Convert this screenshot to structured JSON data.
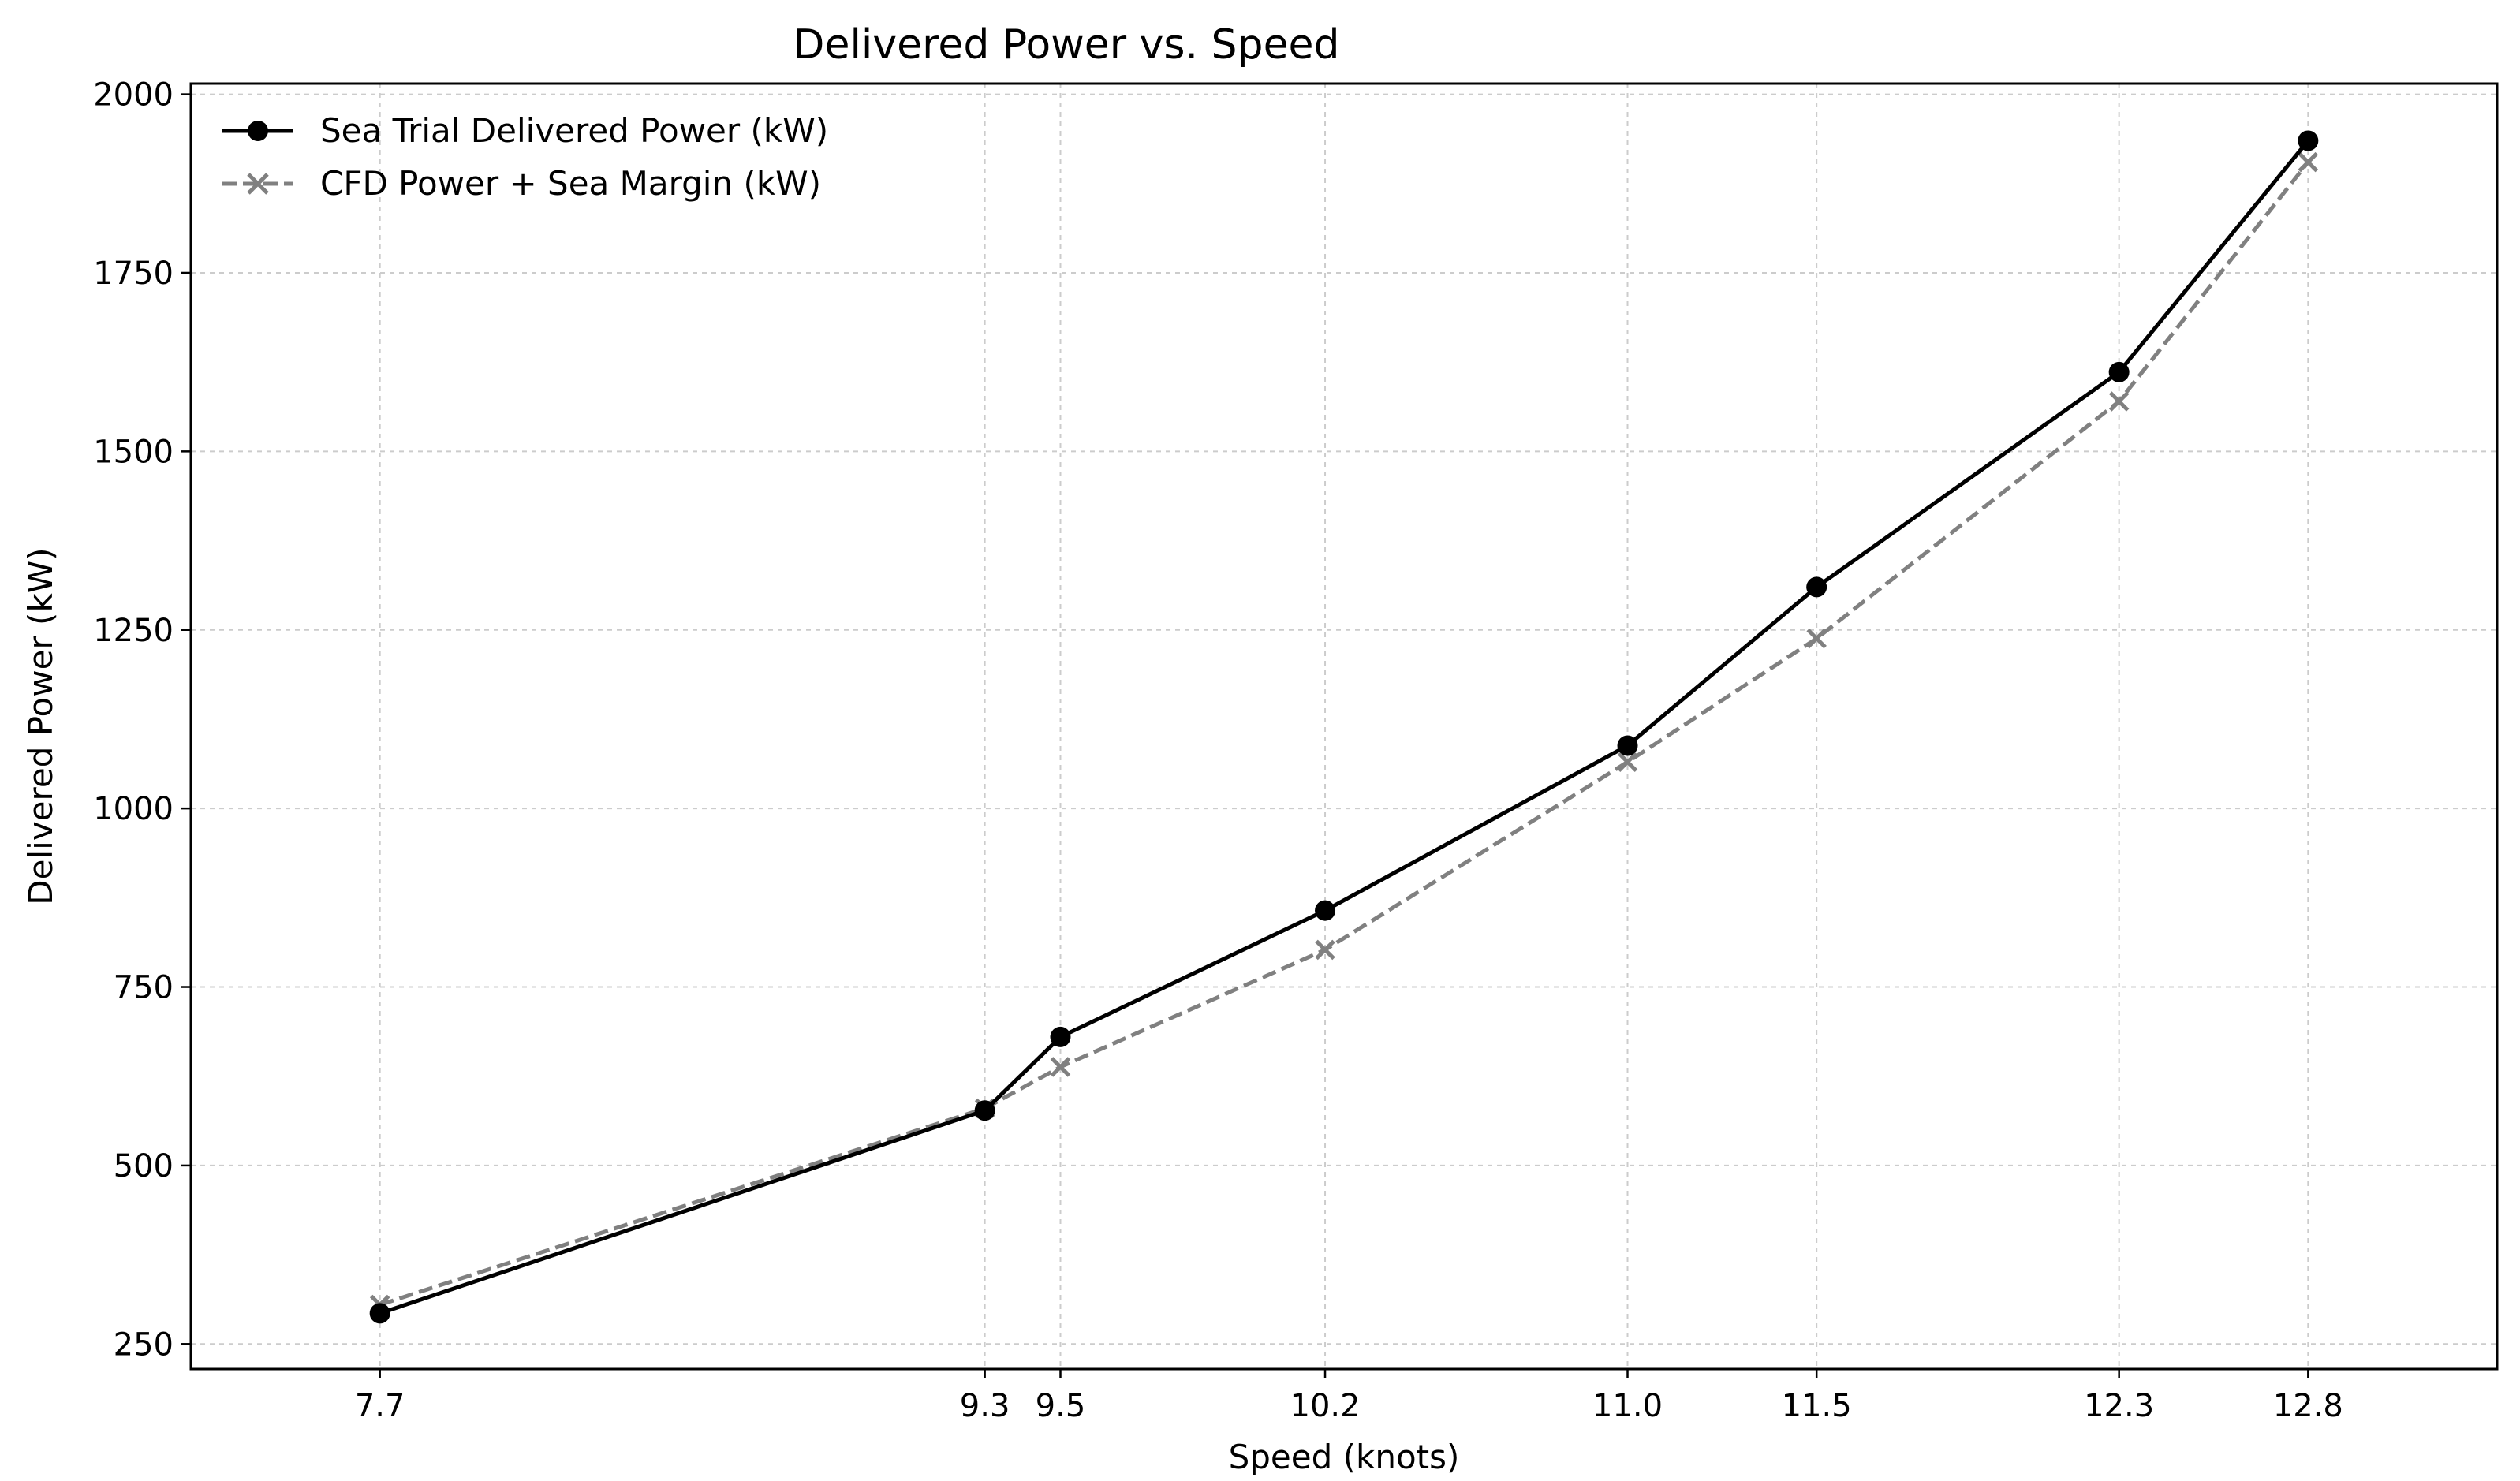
{
  "chart_data": {
    "type": "line",
    "title": "Delivered Power vs. Speed",
    "xlabel": "Speed (knots)",
    "ylabel": "Delivered Power (kW)",
    "x": [
      7.7,
      9.3,
      9.5,
      10.2,
      11.0,
      11.5,
      12.3,
      12.8
    ],
    "x_tick_labels": [
      "7.7",
      "9.3",
      "9.5",
      "10.2",
      "11.0",
      "11.5",
      "12.3",
      "12.8"
    ],
    "y_ticks": [
      250,
      500,
      750,
      1000,
      1250,
      1500,
      1750,
      2000
    ],
    "xlim": [
      7.2,
      13.3
    ],
    "ylim": [
      215,
      2015
    ],
    "grid": true,
    "legend_position": "top-left",
    "series": [
      {
        "name": "Sea Trial Delivered Power (kW)",
        "values": [
          293,
          577,
          680,
          857,
          1088,
          1310,
          1611,
          1935
        ],
        "color": "#000000",
        "style": "solid",
        "marker": "circle"
      },
      {
        "name": "CFD Power + Sea Margin (kW)",
        "values": [
          305,
          580,
          638,
          802,
          1065,
          1238,
          1570,
          1905
        ],
        "color": "#808080",
        "style": "dashed",
        "marker": "x"
      }
    ]
  }
}
